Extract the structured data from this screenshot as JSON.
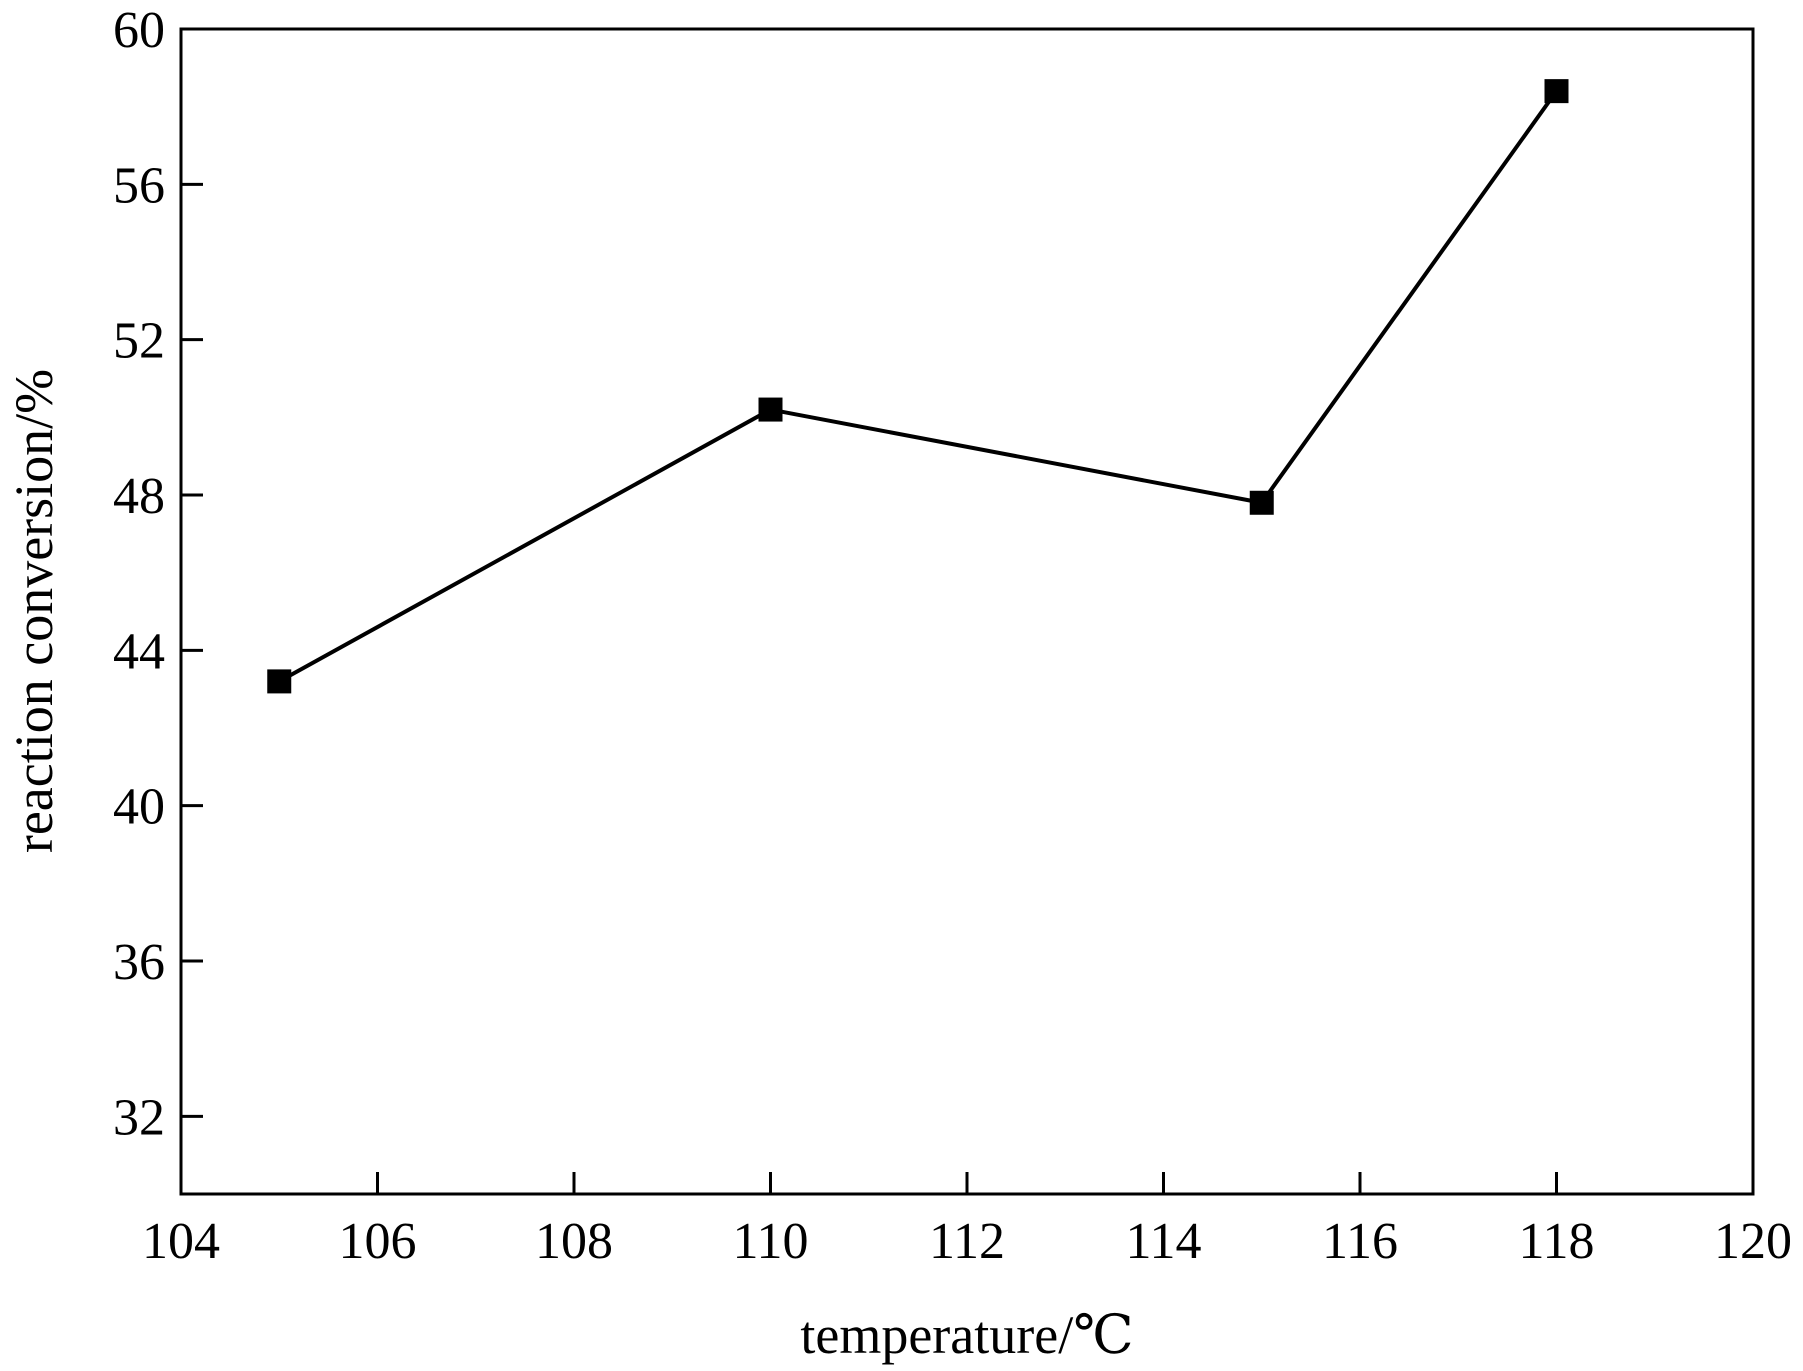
{
  "chart_data": {
    "type": "line",
    "title": "",
    "xlabel": "temperature/℃",
    "ylabel": "reaction conversion/%",
    "xlim": [
      104,
      120
    ],
    "ylim": [
      30,
      60
    ],
    "xticks": [
      104,
      106,
      108,
      110,
      112,
      114,
      116,
      118,
      120
    ],
    "yticks": [
      32,
      36,
      40,
      44,
      48,
      52,
      56,
      60
    ],
    "grid": false,
    "legend": "none",
    "series": [
      {
        "marker": "square",
        "color": "#000000",
        "x": [
          105,
          110,
          115,
          118
        ],
        "y": [
          43.2,
          50.2,
          47.8,
          58.4
        ]
      }
    ]
  }
}
